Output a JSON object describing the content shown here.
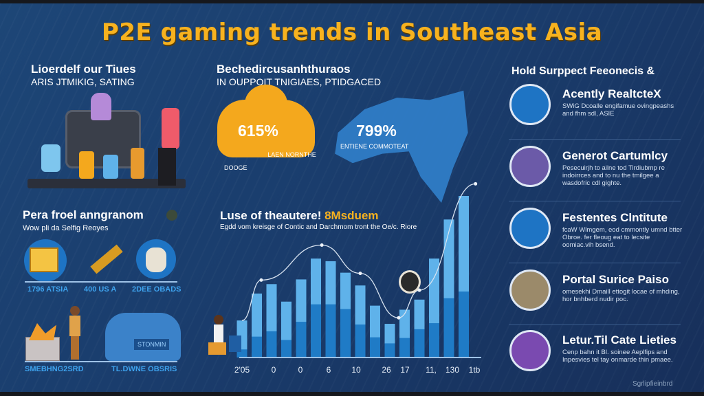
{
  "title": "P2E gaming trends in Southeast Asia",
  "left_top": {
    "title": "Lioerdelf our Tiues",
    "subtitle": "ARIS JTMIKIG, SATING"
  },
  "mid_top": {
    "title": "Bechedircusanhthuraos",
    "subtitle": "IN OUPPOIT TNIGIAES, PTIDGACED",
    "stat1": {
      "value": "615%",
      "label": "LAEN NORNTHE DOOGE"
    },
    "stat2": {
      "value": "799%",
      "label": "ENTIENE COMMOTEAT"
    }
  },
  "left_bottom": {
    "title": "Pera froel anngranom",
    "subtitle": "Wow pli da Selfig Reoyes",
    "icons": [
      {
        "label": "1796 ATSIA"
      },
      {
        "label": "400 US A"
      },
      {
        "label": "2DEE OBADS"
      }
    ],
    "scenes": [
      {
        "label": "SMEBHNG2SRD"
      },
      {
        "label": "TL.DWNE OBSRIS"
      }
    ],
    "badge": "STONMIN"
  },
  "chart_data": {
    "type": "bar",
    "title": "Luse of theautere!",
    "title_highlight": "8Msduem",
    "subtitle": "Egdd vom kreisge of Contic and Darchmom tront the Oe/c. Riore",
    "tick_labels": [
      "2'05",
      "0",
      "0",
      "6",
      "10",
      "26",
      "17",
      "11,",
      "130",
      "1tb"
    ],
    "series": [
      {
        "name": "total",
        "color": "#5fb2ea",
        "values": [
          55,
          95,
          109,
          83,
          116,
          147,
          143,
          126,
          107,
          77,
          50,
          71,
          86,
          147,
          205,
          240
        ]
      },
      {
        "name": "lower",
        "color": "#1f7bc6",
        "values": [
          12,
          31,
          39,
          26,
          53,
          79,
          79,
          72,
          49,
          30,
          21,
          29,
          42,
          51,
          88,
          98
        ]
      }
    ],
    "trend_line": [
      [
        0,
        55
      ],
      [
        1.3,
        115
      ],
      [
        5.4,
        167
      ],
      [
        8,
        125
      ],
      [
        10.6,
        59
      ],
      [
        12,
        100
      ],
      [
        15.8,
        258
      ]
    ],
    "ylim": [
      0,
      260
    ]
  },
  "right": {
    "heading": "Hold Surppect Feeonecis &",
    "items": [
      {
        "title": "Acently RealtcteX",
        "desc": "SWiG Dcoalle engifamue ovingpeashs and fhm sdl, ASIE"
      },
      {
        "title": "Generot Cartumlcy",
        "desc": "Pesecuirjh to ailne tod Tirdiubmp re indoirrces and to nu the tmilgee a wasdofric cdl gighte."
      },
      {
        "title": "Festentes Clntitute",
        "desc": "fcaW Wlmgem, eod cmmontly umnd btter Obroe. fer fleoug eat to lecsite oomiac.vih bsend."
      },
      {
        "title": "Portal Surice Paiso",
        "desc": "omesekhi Dmaill ettogit locae of mhding, hor bnhberd nudir poc."
      },
      {
        "title": "Letur.Til Cate Lieties",
        "desc": "Cenp bahn it Bl. soinee Aeplfips and Inpesvies tel tay onmarde thin pmaee."
      }
    ],
    "watermark": "Sgrlipfieinbrd"
  },
  "colors": {
    "title": "#f7b21f",
    "bg": "#1b3d6d",
    "accent": "#f4a81d",
    "bar_light": "#5fb2ea",
    "bar_dark": "#1f7bc6"
  }
}
